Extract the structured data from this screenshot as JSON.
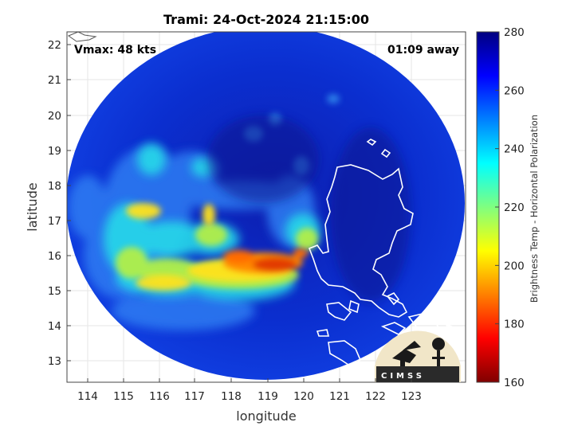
{
  "title": "Trami: 24-Oct-2024 21:15:00",
  "vmax_label": "Vmax: 48 kts",
  "time_away_label": "01:09 away",
  "xlabel": "longitude",
  "ylabel": "latitude",
  "x_ticks": [
    "114",
    "115",
    "116",
    "117",
    "118",
    "119",
    "120",
    "121",
    "122",
    "123"
  ],
  "y_ticks": [
    "13",
    "14",
    "15",
    "16",
    "17",
    "18",
    "19",
    "20",
    "21",
    "22"
  ],
  "colorbar": {
    "label": "Brightness Temp - Horizontal Polarization",
    "ticks": [
      "160",
      "180",
      "200",
      "220",
      "240",
      "260",
      "280"
    ],
    "range": [
      160,
      280
    ],
    "colormap": "jet"
  },
  "logo": {
    "text": "CIMSS"
  },
  "colors": {
    "background_cold": "#0a2ac0",
    "land_outline": "#ffffff",
    "warm_core": "#e23b00"
  }
}
